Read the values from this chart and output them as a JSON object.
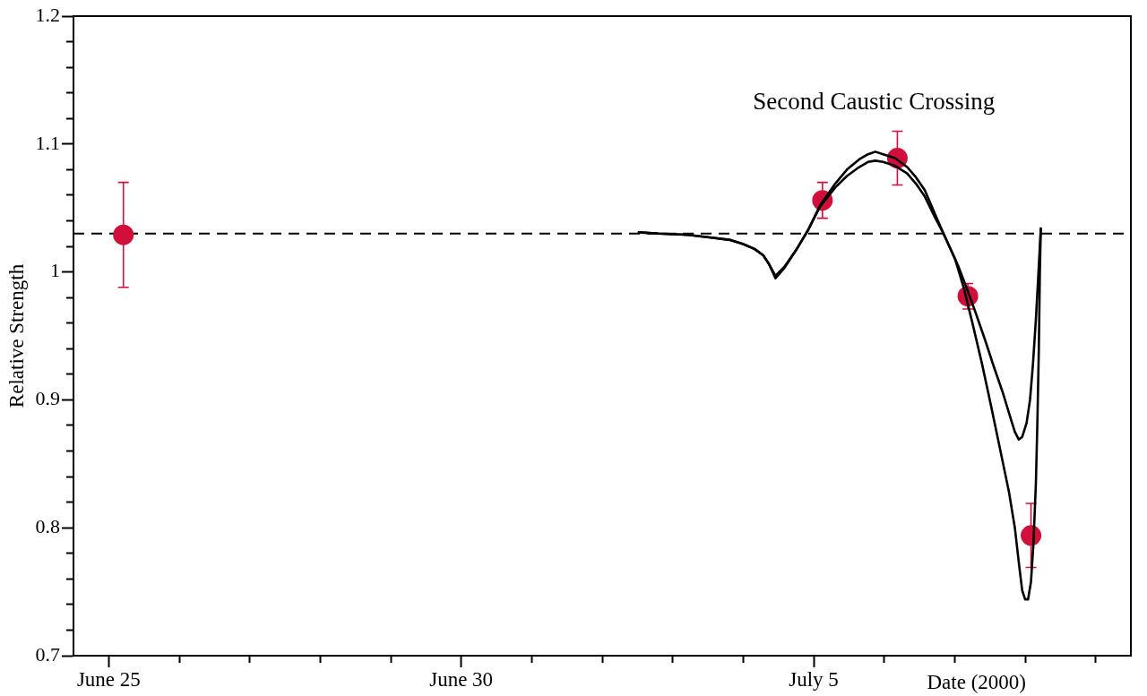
{
  "chart_data": {
    "type": "line",
    "xlabel": "Date (2000)",
    "ylabel": "Relative Strength",
    "xlim": [
      "2000-06-24T12:00",
      "2000-07-09T12:00"
    ],
    "xticks": [
      {
        "value": "2000-06-25",
        "label": "June 25"
      },
      {
        "value": "2000-06-26",
        "label": null
      },
      {
        "value": "2000-06-27",
        "label": null
      },
      {
        "value": "2000-06-28",
        "label": null
      },
      {
        "value": "2000-06-29",
        "label": null
      },
      {
        "value": "2000-06-30",
        "label": "June 30"
      },
      {
        "value": "2000-07-01",
        "label": null
      },
      {
        "value": "2000-07-02",
        "label": null
      },
      {
        "value": "2000-07-03",
        "label": null
      },
      {
        "value": "2000-07-04",
        "label": null
      },
      {
        "value": "2000-07-05",
        "label": "July 5"
      },
      {
        "value": "2000-07-06",
        "label": null
      },
      {
        "value": "2000-07-07",
        "label": null
      },
      {
        "value": "2000-07-08",
        "label": null
      },
      {
        "value": "2000-07-09",
        "label": null
      }
    ],
    "ylim": [
      0.7,
      1.2
    ],
    "yticks": [
      0.7,
      {
        "value": 0.72,
        "label": null
      },
      {
        "value": 0.74,
        "label": null
      },
      {
        "value": 0.76,
        "label": null
      },
      {
        "value": 0.78,
        "label": null
      },
      0.8,
      {
        "value": 0.82,
        "label": null
      },
      {
        "value": 0.84,
        "label": null
      },
      {
        "value": 0.86,
        "label": null
      },
      {
        "value": 0.88,
        "label": null
      },
      0.9,
      {
        "value": 0.92,
        "label": null
      },
      {
        "value": 0.94,
        "label": null
      },
      {
        "value": 0.96,
        "label": null
      },
      {
        "value": 0.98,
        "label": null
      },
      1,
      {
        "value": 1.02,
        "label": null
      },
      {
        "value": 1.04,
        "label": null
      },
      {
        "value": 1.06,
        "label": null
      },
      {
        "value": 1.08,
        "label": null
      },
      1.1,
      {
        "value": 1.12,
        "label": null
      },
      {
        "value": 1.14,
        "label": null
      },
      {
        "value": 1.16,
        "label": null
      },
      {
        "value": 1.18,
        "label": null
      },
      1.2
    ],
    "series": [
      {
        "color": "#000000",
        "x": [
          "2000-07-02T12:30",
          "2000-07-02T19:10",
          "2000-07-03T05:20",
          "2000-07-03T12:30",
          "2000-07-03T19:40",
          "2000-07-03T23:50",
          "2000-07-04T03:50",
          "2000-07-04T06:50",
          "2000-07-04T08:50",
          "2000-07-04T11:00",
          "2000-07-04T14:00",
          "2000-07-04T18:00",
          "2000-07-04T22:10",
          "2000-07-05T02:10",
          "2000-07-05T07:20",
          "2000-07-05T11:20",
          "2000-07-05T15:30",
          "2000-07-05T18:30",
          "2000-07-05T21:00",
          "2000-07-05T23:40",
          "2000-07-06T03:40",
          "2000-07-06T07:50",
          "2000-07-06T10:50",
          "2000-07-06T13:50",
          "2000-07-06T17:00",
          "2000-07-06T20:00",
          "2000-07-07T00:10",
          "2000-07-07T03:10",
          "2000-07-07T06:10",
          "2000-07-07T09:20",
          "2000-07-07T12:20",
          "2000-07-07T15:20",
          "2000-07-07T18:30",
          "2000-07-07T20:30",
          "2000-07-07T22:00",
          "2000-07-07T23:00",
          "2000-07-08T00:00",
          "2000-07-08T01:00",
          "2000-07-08T02:00",
          "2000-07-08T02:50",
          "2000-07-08T03:40",
          "2000-07-08T04:10",
          "2000-07-08T04:40",
          "2000-07-08T05:00",
          "2000-07-08T05:20"
        ],
        "values": [
          1.031,
          1.03,
          1.029,
          1.027,
          1.025,
          1.022,
          1.018,
          1.013,
          1.006,
          0.995,
          1.003,
          1.017,
          1.033,
          1.052,
          1.069,
          1.08,
          1.088,
          1.092,
          1.094,
          1.092,
          1.089,
          1.082,
          1.074,
          1.064,
          1.047,
          1.031,
          1.01,
          0.987,
          0.959,
          0.928,
          0.896,
          0.863,
          0.828,
          0.8,
          0.77,
          0.751,
          0.744,
          0.744,
          0.758,
          0.788,
          0.835,
          0.882,
          0.94,
          0.998,
          1.034
        ]
      },
      {
        "color": "#000000",
        "x": [
          "2000-07-02T12:30",
          "2000-07-02T19:10",
          "2000-07-03T05:20",
          "2000-07-03T12:30",
          "2000-07-03T19:40",
          "2000-07-03T23:50",
          "2000-07-04T03:50",
          "2000-07-04T06:50",
          "2000-07-04T08:50",
          "2000-07-04T11:00",
          "2000-07-04T14:00",
          "2000-07-04T18:00",
          "2000-07-04T22:10",
          "2000-07-05T02:10",
          "2000-07-05T07:20",
          "2000-07-05T11:20",
          "2000-07-05T15:30",
          "2000-07-05T18:30",
          "2000-07-05T21:00",
          "2000-07-05T23:40",
          "2000-07-06T03:40",
          "2000-07-06T07:50",
          "2000-07-06T10:50",
          "2000-07-06T13:50",
          "2000-07-06T17:00",
          "2000-07-06T20:00",
          "2000-07-07T01:10",
          "2000-07-07T04:10",
          "2000-07-07T07:10",
          "2000-07-07T10:20",
          "2000-07-07T13:20",
          "2000-07-07T16:30",
          "2000-07-07T19:00",
          "2000-07-07T20:30",
          "2000-07-07T21:50",
          "2000-07-07T23:00",
          "2000-07-08T00:30",
          "2000-07-08T01:40",
          "2000-07-08T02:40",
          "2000-07-08T03:40",
          "2000-07-08T04:30",
          "2000-07-08T05:20"
        ],
        "values": [
          1.031,
          1.03,
          1.029,
          1.027,
          1.025,
          1.022,
          1.018,
          1.013,
          1.006,
          0.997,
          1.004,
          1.017,
          1.033,
          1.051,
          1.066,
          1.075,
          1.082,
          1.086,
          1.087,
          1.086,
          1.083,
          1.077,
          1.069,
          1.059,
          1.044,
          1.031,
          1.005,
          0.987,
          0.968,
          0.947,
          0.926,
          0.905,
          0.886,
          0.875,
          0.869,
          0.871,
          0.882,
          0.9,
          0.928,
          0.963,
          0.998,
          1.034
        ]
      },
      {
        "type": "scatter",
        "color": "#d0103a",
        "marker": "circle",
        "x": [
          "2000-06-25T05:00",
          "2000-07-05T03:00",
          "2000-07-06T04:30",
          "2000-07-07T04:30",
          "2000-07-08T02:00"
        ],
        "values": [
          1.029,
          1.056,
          1.089,
          0.981,
          0.794
        ],
        "errors": [
          0.041,
          0.014,
          0.021,
          0.01,
          0.025
        ]
      }
    ],
    "ref_lines": [
      {
        "axis": "y",
        "value": 1.03,
        "color": "#000000",
        "line_style": "dashed"
      }
    ],
    "annotations": [
      "Second Caustic Crossing"
    ]
  }
}
